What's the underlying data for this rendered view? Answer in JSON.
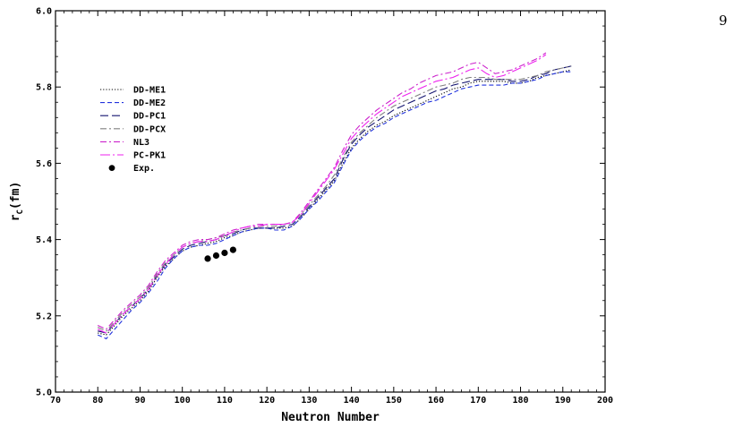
{
  "page": {
    "number": "9"
  },
  "chart_data": {
    "type": "line",
    "title": "",
    "xlabel": "Neutron Number",
    "ylabel_main": "r",
    "ylabel_sub": "C",
    "ylabel_unit": "(fm)",
    "xlim": [
      70,
      200
    ],
    "ylim": [
      5.0,
      6.0
    ],
    "x_ticks": [
      70,
      80,
      90,
      100,
      110,
      120,
      130,
      140,
      150,
      160,
      170,
      180,
      190,
      200
    ],
    "y_ticks": [
      "5.0",
      "5.2",
      "5.4",
      "5.6",
      "5.8",
      "6.0"
    ],
    "legend_position": "upper-left",
    "grid": false,
    "series": [
      {
        "name": "DD-ME1",
        "color": "#000000",
        "dash": "dotted",
        "x": [
          80,
          82,
          84,
          86,
          88,
          90,
          92,
          94,
          96,
          98,
          100,
          102,
          104,
          106,
          108,
          110,
          112,
          114,
          116,
          118,
          120,
          122,
          124,
          126,
          128,
          130,
          132,
          134,
          136,
          138,
          140,
          142,
          144,
          146,
          148,
          150,
          152,
          154,
          156,
          158,
          160,
          162,
          164,
          166,
          168,
          170,
          172,
          174,
          176,
          178,
          180,
          182,
          184,
          186,
          188,
          190,
          192
        ],
        "y": [
          5.155,
          5.15,
          5.175,
          5.2,
          5.22,
          5.24,
          5.265,
          5.3,
          5.33,
          5.35,
          5.37,
          5.38,
          5.385,
          5.39,
          5.395,
          5.405,
          5.41,
          5.42,
          5.425,
          5.43,
          5.43,
          5.43,
          5.43,
          5.435,
          5.455,
          5.48,
          5.505,
          5.53,
          5.555,
          5.6,
          5.64,
          5.665,
          5.685,
          5.7,
          5.71,
          5.725,
          5.735,
          5.745,
          5.755,
          5.765,
          5.775,
          5.785,
          5.795,
          5.8,
          5.81,
          5.815,
          5.815,
          5.815,
          5.815,
          5.81,
          5.81,
          5.815,
          5.825,
          5.83,
          5.835,
          5.84,
          5.845
        ]
      },
      {
        "name": "DD-ME2",
        "color": "#2233dd",
        "dash": "medium-dash",
        "x": [
          80,
          82,
          84,
          86,
          88,
          90,
          92,
          94,
          96,
          98,
          100,
          102,
          104,
          106,
          108,
          110,
          112,
          114,
          116,
          118,
          120,
          122,
          124,
          126,
          128,
          130,
          132,
          134,
          136,
          138,
          140,
          142,
          144,
          146,
          148,
          150,
          152,
          154,
          156,
          158,
          160,
          162,
          164,
          166,
          168,
          170,
          172,
          174,
          176,
          178,
          180,
          182,
          184,
          186,
          188,
          190,
          192
        ],
        "y": [
          5.15,
          5.14,
          5.165,
          5.19,
          5.215,
          5.235,
          5.26,
          5.29,
          5.325,
          5.35,
          5.37,
          5.38,
          5.385,
          5.385,
          5.39,
          5.4,
          5.41,
          5.42,
          5.425,
          5.43,
          5.43,
          5.425,
          5.425,
          5.435,
          5.455,
          5.48,
          5.5,
          5.525,
          5.55,
          5.595,
          5.635,
          5.66,
          5.68,
          5.695,
          5.705,
          5.72,
          5.73,
          5.74,
          5.75,
          5.76,
          5.765,
          5.775,
          5.785,
          5.795,
          5.8,
          5.805,
          5.805,
          5.805,
          5.805,
          5.81,
          5.81,
          5.815,
          5.82,
          5.83,
          5.835,
          5.84,
          5.84
        ]
      },
      {
        "name": "DD-PC1",
        "color": "#141470",
        "dash": "long-dash",
        "x": [
          80,
          82,
          84,
          86,
          88,
          90,
          92,
          94,
          96,
          98,
          100,
          102,
          104,
          106,
          108,
          110,
          112,
          114,
          116,
          118,
          120,
          122,
          124,
          126,
          128,
          130,
          132,
          134,
          136,
          138,
          140,
          142,
          144,
          146,
          148,
          150,
          152,
          154,
          156,
          158,
          160,
          162,
          164,
          166,
          168,
          170,
          172,
          174,
          176,
          178,
          180,
          182,
          184,
          186,
          188,
          190,
          192
        ],
        "y": [
          5.16,
          5.155,
          5.18,
          5.205,
          5.225,
          5.245,
          5.27,
          5.305,
          5.335,
          5.355,
          5.375,
          5.385,
          5.39,
          5.395,
          5.4,
          5.41,
          5.415,
          5.425,
          5.43,
          5.43,
          5.43,
          5.43,
          5.435,
          5.44,
          5.46,
          5.485,
          5.51,
          5.535,
          5.56,
          5.61,
          5.65,
          5.675,
          5.695,
          5.71,
          5.725,
          5.74,
          5.75,
          5.76,
          5.77,
          5.78,
          5.79,
          5.795,
          5.805,
          5.81,
          5.815,
          5.82,
          5.82,
          5.82,
          5.82,
          5.815,
          5.815,
          5.82,
          5.83,
          5.835,
          5.845,
          5.85,
          5.855
        ]
      },
      {
        "name": "DD-PCX",
        "color": "#808080",
        "dash": "dash-dot",
        "x": [
          80,
          82,
          84,
          86,
          88,
          90,
          92,
          94,
          96,
          98,
          100,
          102,
          104,
          106,
          108,
          110,
          112,
          114,
          116,
          118,
          120,
          122,
          124,
          126,
          128,
          130,
          132,
          134,
          136,
          138,
          140,
          142,
          144,
          146,
          148,
          150,
          152,
          154,
          156,
          158,
          160,
          162,
          164,
          166,
          168,
          170,
          172,
          174,
          176,
          178,
          180,
          182,
          184,
          186,
          188,
          190,
          192
        ],
        "y": [
          5.17,
          5.16,
          5.185,
          5.21,
          5.23,
          5.25,
          5.275,
          5.31,
          5.34,
          5.36,
          5.38,
          5.39,
          5.395,
          5.4,
          5.405,
          5.41,
          5.42,
          5.425,
          5.43,
          5.435,
          5.435,
          5.435,
          5.44,
          5.445,
          5.465,
          5.49,
          5.515,
          5.54,
          5.57,
          5.615,
          5.655,
          5.68,
          5.7,
          5.72,
          5.735,
          5.75,
          5.76,
          5.77,
          5.78,
          5.79,
          5.8,
          5.805,
          5.81,
          5.82,
          5.825,
          5.825,
          5.825,
          5.82,
          5.82,
          5.82,
          5.82,
          5.825,
          5.83,
          5.84,
          5.845,
          5.85,
          5.855
        ]
      },
      {
        "name": "NL3",
        "color": "#cc22cc",
        "dash": "dash-dot",
        "x": [
          80,
          82,
          84,
          86,
          88,
          90,
          92,
          94,
          96,
          98,
          100,
          102,
          104,
          106,
          108,
          110,
          112,
          114,
          116,
          118,
          120,
          122,
          124,
          126,
          128,
          130,
          132,
          134,
          136,
          138,
          140,
          142,
          144,
          146,
          148,
          150,
          152,
          154,
          156,
          158,
          160,
          162,
          164,
          166,
          168,
          170,
          172,
          174,
          176,
          178,
          180,
          182,
          184,
          186
        ],
        "y": [
          5.175,
          5.165,
          5.19,
          5.215,
          5.235,
          5.255,
          5.28,
          5.315,
          5.345,
          5.365,
          5.385,
          5.395,
          5.4,
          5.4,
          5.405,
          5.415,
          5.425,
          5.43,
          5.435,
          5.44,
          5.44,
          5.44,
          5.44,
          5.445,
          5.47,
          5.5,
          5.53,
          5.56,
          5.59,
          5.635,
          5.675,
          5.7,
          5.72,
          5.74,
          5.755,
          5.77,
          5.785,
          5.795,
          5.81,
          5.82,
          5.83,
          5.835,
          5.84,
          5.85,
          5.86,
          5.865,
          5.85,
          5.835,
          5.84,
          5.845,
          5.855,
          5.865,
          5.875,
          5.89
        ]
      },
      {
        "name": "PC-PK1",
        "color": "#ee22ee",
        "dash": "long-dash-dot",
        "x": [
          80,
          82,
          84,
          86,
          88,
          90,
          92,
          94,
          96,
          98,
          100,
          102,
          104,
          106,
          108,
          110,
          112,
          114,
          116,
          118,
          120,
          122,
          124,
          126,
          128,
          130,
          132,
          134,
          136,
          138,
          140,
          142,
          144,
          146,
          148,
          150,
          152,
          154,
          156,
          158,
          160,
          162,
          164,
          166,
          168,
          170,
          172,
          174,
          176,
          178,
          180,
          182,
          184,
          186
        ],
        "y": [
          5.165,
          5.155,
          5.18,
          5.205,
          5.225,
          5.245,
          5.27,
          5.305,
          5.335,
          5.36,
          5.38,
          5.39,
          5.395,
          5.395,
          5.4,
          5.41,
          5.42,
          5.43,
          5.435,
          5.435,
          5.44,
          5.44,
          5.44,
          5.445,
          5.465,
          5.495,
          5.525,
          5.555,
          5.585,
          5.625,
          5.665,
          5.69,
          5.71,
          5.73,
          5.745,
          5.76,
          5.775,
          5.785,
          5.795,
          5.805,
          5.815,
          5.82,
          5.825,
          5.835,
          5.845,
          5.85,
          5.835,
          5.825,
          5.83,
          5.84,
          5.85,
          5.86,
          5.87,
          5.885
        ]
      },
      {
        "name": "Exp.",
        "color": "#000000",
        "marker": "filled-circle",
        "x": [
          106,
          108,
          110,
          112
        ],
        "y": [
          5.35,
          5.358,
          5.365,
          5.373
        ]
      }
    ]
  }
}
